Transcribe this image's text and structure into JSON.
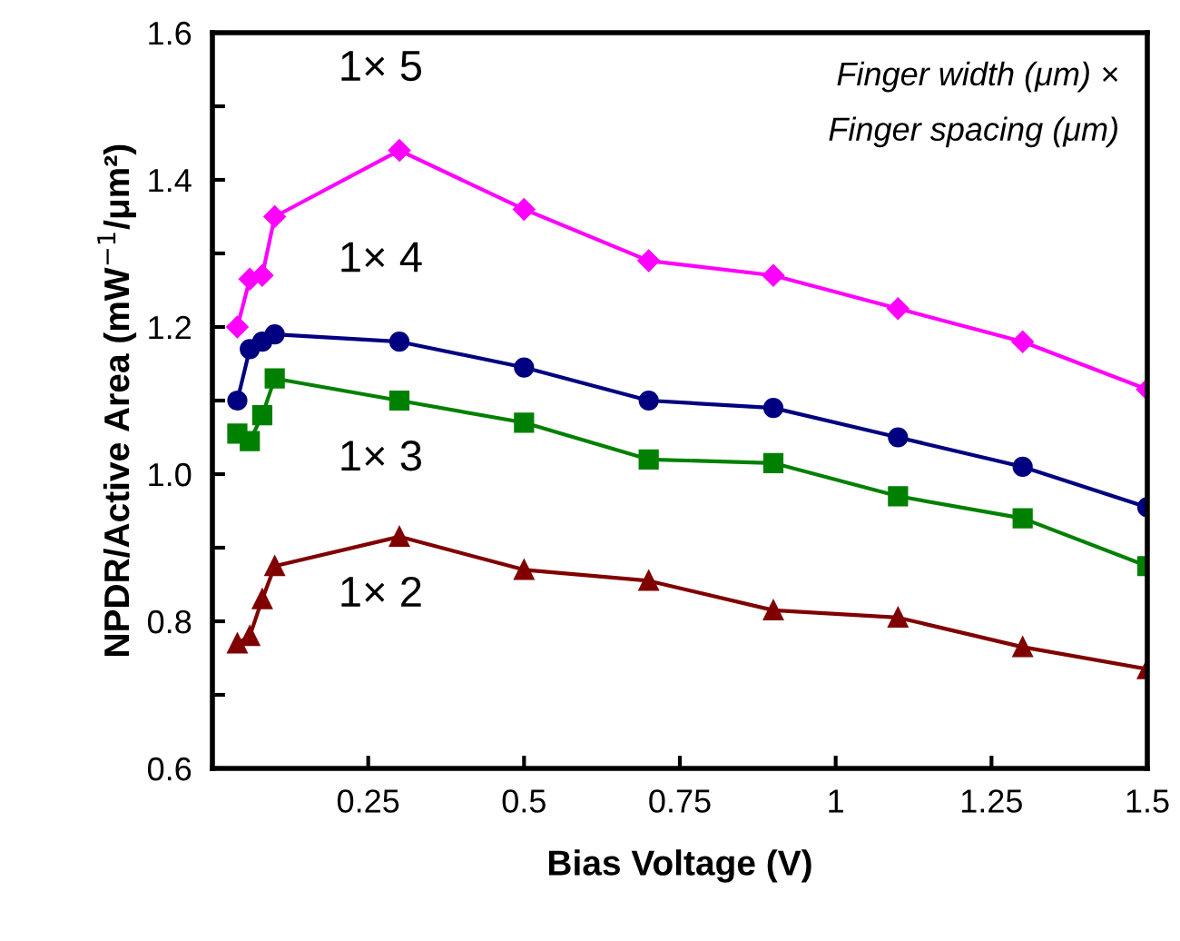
{
  "chart_data": {
    "type": "line",
    "xlabel": "Bias Voltage (V)",
    "ylabel": "NPDR/Active Area (mW$^{−1}$/μm²)",
    "x": [
      0.04,
      0.06,
      0.08,
      0.1,
      0.3,
      0.5,
      0.7,
      0.9,
      1.1,
      1.3,
      1.5
    ],
    "series": [
      {
        "name": "1× 5",
        "color": "#ff00ff",
        "marker": "diamond",
        "values": [
          1.2,
          1.265,
          1.27,
          1.35,
          1.44,
          1.36,
          1.29,
          1.27,
          1.225,
          1.18,
          1.115
        ]
      },
      {
        "name": "1× 4",
        "color": "#000080",
        "marker": "circle",
        "values": [
          1.1,
          1.17,
          1.18,
          1.19,
          1.18,
          1.145,
          1.1,
          1.09,
          1.05,
          1.01,
          0.955
        ]
      },
      {
        "name": "1× 3",
        "color": "#008000",
        "marker": "square",
        "values": [
          1.055,
          1.045,
          1.08,
          1.13,
          1.1,
          1.07,
          1.02,
          1.015,
          0.97,
          0.94,
          0.875
        ]
      },
      {
        "name": "1× 2",
        "color": "#800000",
        "marker": "triangle",
        "values": [
          0.77,
          0.78,
          0.83,
          0.875,
          0.915,
          0.87,
          0.855,
          0.815,
          0.805,
          0.765,
          0.735
        ]
      }
    ],
    "xlim": [
      0,
      1.5
    ],
    "xticks": [
      {
        "value": 0,
        "label": null
      },
      0.25,
      0.5,
      0.75,
      1,
      1.25,
      1.5
    ],
    "ylim": [
      0.6,
      1.6
    ],
    "yticks": [
      0.6,
      {
        "value": 0.7,
        "label": null
      },
      0.8,
      {
        "value": 0.9,
        "label": null
      },
      {
        "value": 1.0,
        "label": "1.0"
      },
      {
        "value": 1.1,
        "label": null
      },
      1.2,
      {
        "value": 1.3,
        "label": null
      },
      1.4,
      {
        "value": 1.5,
        "label": null
      },
      1.6
    ],
    "annotations": [
      "Finger width (μm) ×",
      "Finger spacing (μm)"
    ],
    "grid": false,
    "legend": false
  }
}
